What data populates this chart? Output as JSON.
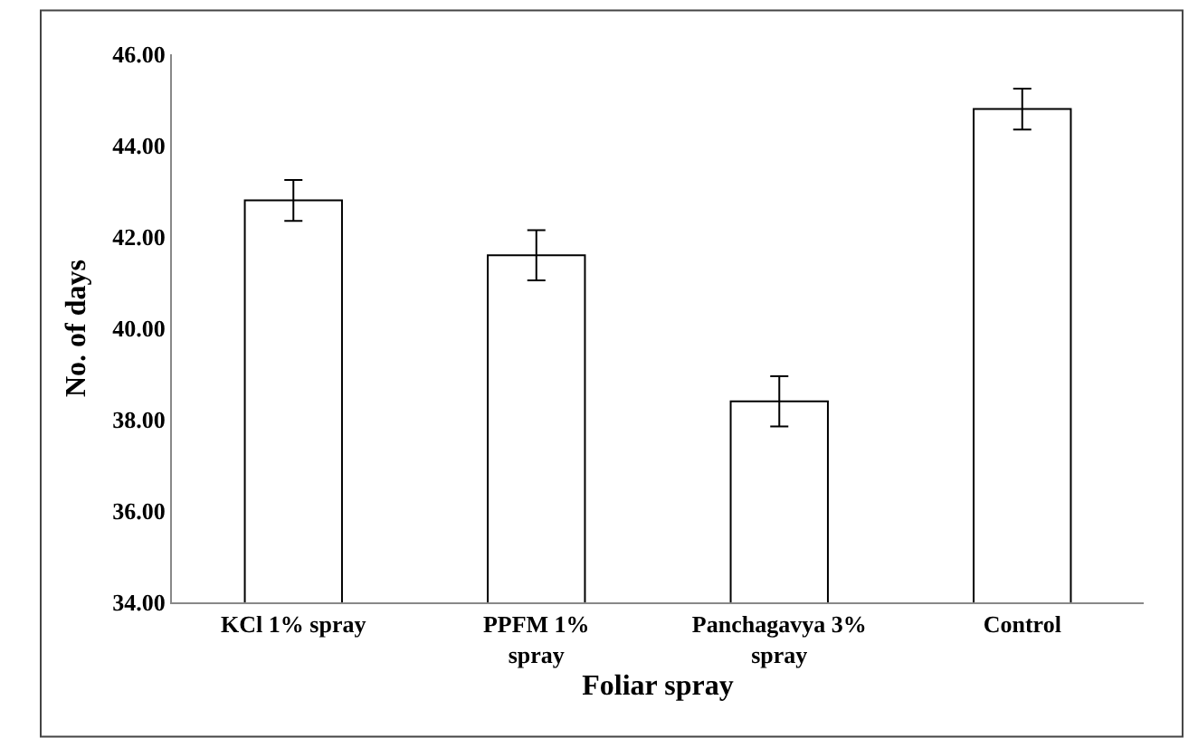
{
  "chart_data": {
    "type": "bar",
    "xlabel": "Foliar spray",
    "ylabel": "No. of days",
    "categories": [
      "KCl 1% spray",
      "PPFM 1%\nspray",
      "Panchagavya 3%\nspray",
      "Control"
    ],
    "values": [
      42.8,
      41.6,
      38.4,
      44.8
    ],
    "errors": [
      0.45,
      0.55,
      0.55,
      0.45
    ],
    "color": "#ffffff",
    "ylim": [
      34,
      46
    ],
    "yticks": [
      {
        "value": 34,
        "label": "34.00"
      },
      {
        "value": 36,
        "label": "36.00"
      },
      {
        "value": 38,
        "label": "38.00"
      },
      {
        "value": 40,
        "label": "40.00"
      },
      {
        "value": 42,
        "label": "42.00"
      },
      {
        "value": 44,
        "label": "44.00"
      },
      {
        "value": 46,
        "label": "46.00"
      }
    ],
    "legend": false
  }
}
